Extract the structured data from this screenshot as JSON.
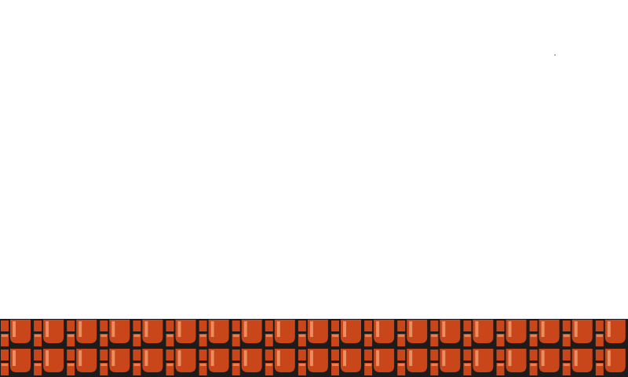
{
  "scene": {
    "type": "platformer-level",
    "sky_color": "#ffffff",
    "ground": {
      "tile_type": "brick",
      "rows": 2,
      "colors": {
        "brick": "#c8461a",
        "brick_highlight": "#f29a6e",
        "mortar": "#1c1c1c"
      }
    },
    "speck_color": "#9a9a9a"
  }
}
